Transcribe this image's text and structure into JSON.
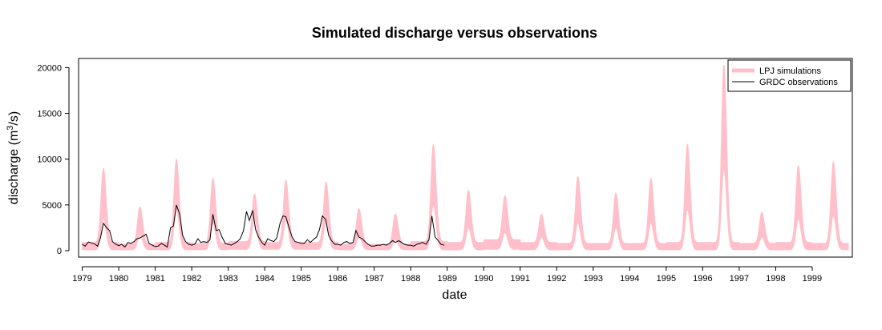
{
  "chart_data": {
    "type": "area",
    "title": "Simulated discharge versus observations",
    "xlabel": "date",
    "ylabel_main": "discharge (m",
    "ylabel_sup": "3",
    "ylabel_end": "/s)",
    "x_tick_labels": [
      "1979",
      "1980",
      "1981",
      "1982",
      "1983",
      "1984",
      "1985",
      "1986",
      "1987",
      "1988",
      "1989",
      "1990",
      "1991",
      "1992",
      "1993",
      "1994",
      "1995",
      "1996",
      "1997",
      "1998",
      "1999"
    ],
    "xlim": [
      1978.9,
      2000.1
    ],
    "ylim": [
      -700,
      21000
    ],
    "y_ticks": [
      0,
      5000,
      10000,
      15000,
      20000
    ],
    "y_tick_labels": [
      "0",
      "5000",
      "10000",
      "15000",
      "20000"
    ],
    "grid": false,
    "legend_position": "top-right",
    "colors": {
      "simulation": "#ffc0cb",
      "observation": "#000000"
    },
    "series": [
      {
        "name": "LPJ simulations",
        "kind": "band",
        "peaks": [
          {
            "year": 1979,
            "peak_time": 1979.58,
            "upper": 9000,
            "lower": 3500,
            "base_upper": 900,
            "base_lower": 100
          },
          {
            "year": 1980,
            "peak_time": 1980.58,
            "upper": 4800,
            "lower": 1700,
            "base_upper": 700,
            "base_lower": 100
          },
          {
            "year": 1981,
            "peak_time": 1981.58,
            "upper": 10000,
            "lower": 4500,
            "base_upper": 900,
            "base_lower": 100
          },
          {
            "year": 1982,
            "peak_time": 1982.58,
            "upper": 7900,
            "lower": 3000,
            "base_upper": 800,
            "base_lower": 100
          },
          {
            "year": 1983,
            "peak_time": 1983.72,
            "upper": 6200,
            "lower": 3500,
            "base_upper": 1000,
            "base_lower": 150
          },
          {
            "year": 1984,
            "peak_time": 1984.58,
            "upper": 7700,
            "lower": 3300,
            "base_upper": 900,
            "base_lower": 150
          },
          {
            "year": 1985,
            "peak_time": 1985.68,
            "upper": 7500,
            "lower": 3200,
            "base_upper": 900,
            "base_lower": 150
          },
          {
            "year": 1986,
            "peak_time": 1986.58,
            "upper": 4600,
            "lower": 1500,
            "base_upper": 700,
            "base_lower": 100
          },
          {
            "year": 1987,
            "peak_time": 1987.58,
            "upper": 4000,
            "lower": 1200,
            "base_upper": 700,
            "base_lower": 100
          },
          {
            "year": 1988,
            "peak_time": 1988.62,
            "upper": 11600,
            "lower": 5000,
            "base_upper": 1000,
            "base_lower": 100
          },
          {
            "year": 1989,
            "peak_time": 1989.58,
            "upper": 6600,
            "lower": 2500,
            "base_upper": 900,
            "base_lower": 100
          },
          {
            "year": 1990,
            "peak_time": 1990.58,
            "upper": 6000,
            "lower": 2000,
            "base_upper": 1200,
            "base_lower": 150
          },
          {
            "year": 1991,
            "peak_time": 1991.58,
            "upper": 4000,
            "lower": 1500,
            "base_upper": 900,
            "base_lower": 100
          },
          {
            "year": 1992,
            "peak_time": 1992.58,
            "upper": 8100,
            "lower": 3000,
            "base_upper": 800,
            "base_lower": 100
          },
          {
            "year": 1993,
            "peak_time": 1993.62,
            "upper": 6300,
            "lower": 2500,
            "base_upper": 800,
            "base_lower": 100
          },
          {
            "year": 1994,
            "peak_time": 1994.58,
            "upper": 7900,
            "lower": 3000,
            "base_upper": 800,
            "base_lower": 100
          },
          {
            "year": 1995,
            "peak_time": 1995.58,
            "upper": 11600,
            "lower": 4500,
            "base_upper": 900,
            "base_lower": 100
          },
          {
            "year": 1996,
            "peak_time": 1996.58,
            "upper": 20300,
            "lower": 9000,
            "base_upper": 900,
            "base_lower": 100
          },
          {
            "year": 1997,
            "peak_time": 1997.62,
            "upper": 4200,
            "lower": 1500,
            "base_upper": 800,
            "base_lower": 100
          },
          {
            "year": 1998,
            "peak_time": 1998.62,
            "upper": 9300,
            "lower": 3500,
            "base_upper": 900,
            "base_lower": 100
          },
          {
            "year": 1999,
            "peak_time": 1999.58,
            "upper": 9700,
            "lower": 3800,
            "base_upper": 800,
            "base_lower": 100
          }
        ]
      },
      {
        "name": "GRDC observations",
        "kind": "line",
        "points": [
          [
            1979.0,
            700
          ],
          [
            1979.08,
            500
          ],
          [
            1979.17,
            950
          ],
          [
            1979.25,
            850
          ],
          [
            1979.33,
            750
          ],
          [
            1979.42,
            500
          ],
          [
            1979.5,
            1400
          ],
          [
            1979.58,
            3000
          ],
          [
            1979.67,
            2500
          ],
          [
            1979.75,
            2200
          ],
          [
            1979.83,
            1000
          ],
          [
            1979.92,
            700
          ],
          [
            1980.0,
            550
          ],
          [
            1980.08,
            700
          ],
          [
            1980.17,
            400
          ],
          [
            1980.25,
            900
          ],
          [
            1980.33,
            800
          ],
          [
            1980.42,
            1000
          ],
          [
            1980.5,
            1300
          ],
          [
            1980.58,
            1400
          ],
          [
            1980.67,
            1600
          ],
          [
            1980.75,
            1800
          ],
          [
            1980.83,
            800
          ],
          [
            1980.92,
            600
          ],
          [
            1981.0,
            450
          ],
          [
            1981.08,
            500
          ],
          [
            1981.17,
            800
          ],
          [
            1981.25,
            600
          ],
          [
            1981.33,
            400
          ],
          [
            1981.42,
            2500
          ],
          [
            1981.5,
            2700
          ],
          [
            1981.58,
            5000
          ],
          [
            1981.67,
            4000
          ],
          [
            1981.75,
            1700
          ],
          [
            1981.83,
            1000
          ],
          [
            1981.92,
            700
          ],
          [
            1982.0,
            600
          ],
          [
            1982.08,
            700
          ],
          [
            1982.17,
            1300
          ],
          [
            1982.25,
            900
          ],
          [
            1982.33,
            1000
          ],
          [
            1982.42,
            900
          ],
          [
            1982.5,
            1200
          ],
          [
            1982.58,
            4000
          ],
          [
            1982.67,
            2200
          ],
          [
            1982.75,
            2300
          ],
          [
            1982.83,
            1500
          ],
          [
            1982.92,
            800
          ],
          [
            1983.0,
            700
          ],
          [
            1983.08,
            600
          ],
          [
            1983.17,
            800
          ],
          [
            1983.25,
            1000
          ],
          [
            1983.33,
            1300
          ],
          [
            1983.42,
            2200
          ],
          [
            1983.5,
            4300
          ],
          [
            1983.58,
            3300
          ],
          [
            1983.67,
            4400
          ],
          [
            1983.75,
            2300
          ],
          [
            1983.83,
            1500
          ],
          [
            1983.92,
            900
          ],
          [
            1984.0,
            600
          ],
          [
            1984.08,
            1300
          ],
          [
            1984.17,
            1100
          ],
          [
            1984.25,
            1000
          ],
          [
            1984.33,
            1400
          ],
          [
            1984.42,
            3000
          ],
          [
            1984.5,
            3800
          ],
          [
            1984.58,
            3700
          ],
          [
            1984.67,
            2500
          ],
          [
            1984.75,
            1500
          ],
          [
            1984.83,
            1000
          ],
          [
            1984.92,
            900
          ],
          [
            1985.0,
            800
          ],
          [
            1985.08,
            800
          ],
          [
            1985.17,
            1200
          ],
          [
            1985.25,
            900
          ],
          [
            1985.33,
            1200
          ],
          [
            1985.42,
            1500
          ],
          [
            1985.5,
            2300
          ],
          [
            1985.58,
            3800
          ],
          [
            1985.67,
            3400
          ],
          [
            1985.75,
            1700
          ],
          [
            1985.83,
            1100
          ],
          [
            1985.92,
            700
          ],
          [
            1986.0,
            700
          ],
          [
            1986.08,
            600
          ],
          [
            1986.17,
            900
          ],
          [
            1986.25,
            1000
          ],
          [
            1986.33,
            800
          ],
          [
            1986.42,
            900
          ],
          [
            1986.5,
            2200
          ],
          [
            1986.58,
            1500
          ],
          [
            1986.67,
            1300
          ],
          [
            1986.75,
            1000
          ],
          [
            1986.83,
            700
          ],
          [
            1986.92,
            500
          ],
          [
            1987.0,
            500
          ],
          [
            1987.08,
            600
          ],
          [
            1987.17,
            600
          ],
          [
            1987.25,
            700
          ],
          [
            1987.33,
            600
          ],
          [
            1987.42,
            800
          ],
          [
            1987.5,
            1100
          ],
          [
            1987.58,
            900
          ],
          [
            1987.67,
            1100
          ],
          [
            1987.75,
            900
          ],
          [
            1987.83,
            700
          ],
          [
            1987.92,
            600
          ],
          [
            1988.0,
            600
          ],
          [
            1988.08,
            500
          ],
          [
            1988.17,
            700
          ],
          [
            1988.25,
            800
          ],
          [
            1988.33,
            900
          ],
          [
            1988.42,
            700
          ],
          [
            1988.5,
            1200
          ],
          [
            1988.58,
            3800
          ],
          [
            1988.67,
            1500
          ],
          [
            1988.75,
            1100
          ],
          [
            1988.83,
            700
          ],
          [
            1988.92,
            600
          ]
        ]
      }
    ]
  }
}
